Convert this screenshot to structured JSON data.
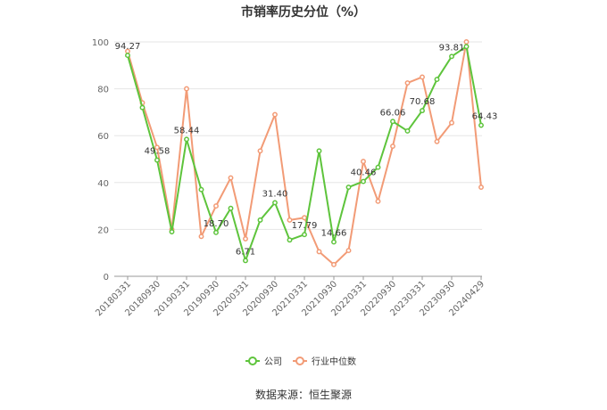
{
  "chart_data": {
    "type": "line",
    "title": "市销率历史分位（%）",
    "source": "数据来源：恒生聚源",
    "ylim": [
      0,
      100
    ],
    "yticks": [
      0,
      20,
      40,
      60,
      80,
      100
    ],
    "grid": true,
    "legend_position": "bottom-center",
    "x_ticks": [
      "20180331",
      "20180930",
      "20190331",
      "20190930",
      "20200331",
      "20200930",
      "20210331",
      "20210930",
      "20220331",
      "20220930",
      "20230331",
      "20230930",
      "20240429"
    ],
    "series": [
      {
        "name": "公司",
        "color": "#5ec43c",
        "values": [
          94.27,
          72,
          49.58,
          19,
          58.44,
          37,
          18.7,
          29,
          6.71,
          24,
          31.4,
          15.5,
          17.79,
          53.5,
          14.66,
          38,
          40.46,
          46.5,
          66.06,
          62,
          70.68,
          84,
          93.81,
          98,
          64.43
        ],
        "labels": [
          "94.27",
          "",
          "49.58",
          "",
          "58.44",
          "",
          "18.70",
          "",
          "6.71",
          "",
          "31.40",
          "",
          "17.79",
          "",
          "14.66",
          "",
          "40.46",
          "",
          "66.06",
          "",
          "70.68",
          "",
          "93.81",
          "",
          "64.43"
        ]
      },
      {
        "name": "行业中位数",
        "color": "#f29b76",
        "values": [
          96,
          74,
          55,
          20,
          80,
          17,
          30,
          42,
          16,
          53.5,
          69,
          24,
          25,
          10.5,
          5,
          11,
          49,
          32,
          55.5,
          82.5,
          85,
          57.5,
          65.5,
          100,
          38
        ]
      }
    ]
  }
}
